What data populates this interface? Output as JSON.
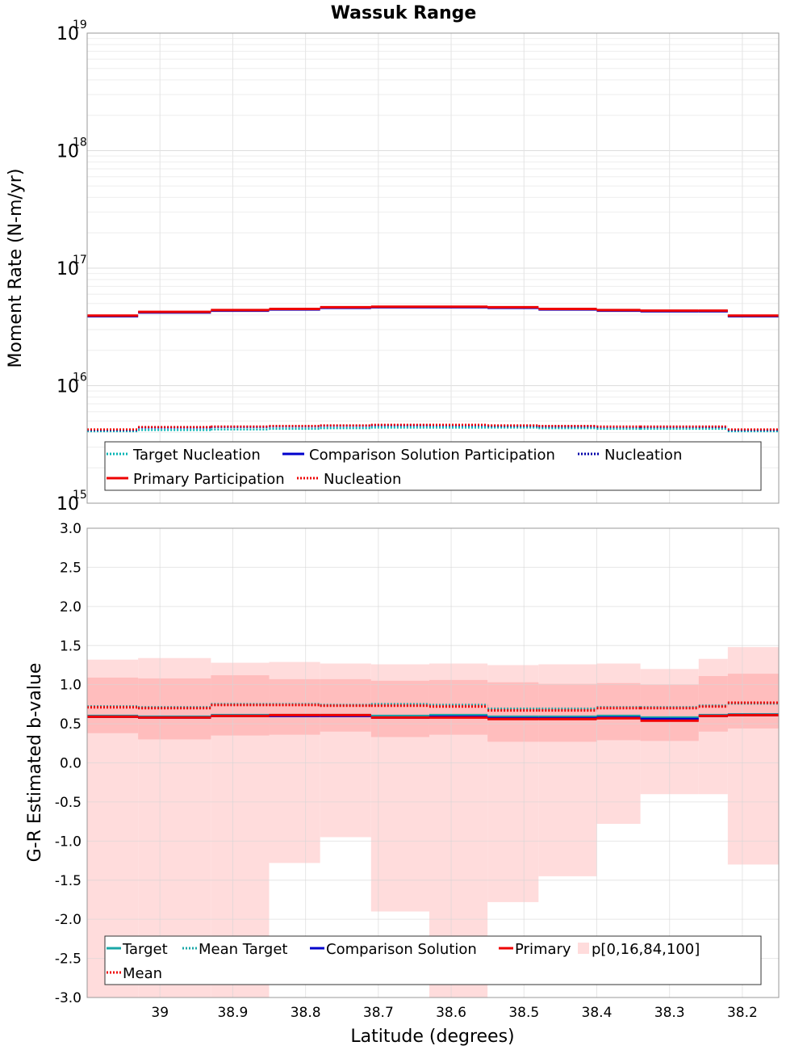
{
  "chart_data": [
    {
      "type": "line",
      "title": "Wassuk Range",
      "xlabel": "",
      "ylabel": "Moment Rate (N-m/yr)",
      "yscale": "log",
      "ylim": [
        1000000000000000.0,
        1e+19
      ],
      "yticks": [
        {
          "base": "10",
          "exp": "15",
          "value": 1000000000000000.0
        },
        {
          "base": "10",
          "exp": "16",
          "value": 1e+16
        },
        {
          "base": "10",
          "exp": "17",
          "value": 1e+17
        },
        {
          "base": "10",
          "exp": "18",
          "value": 1e+18
        },
        {
          "base": "10",
          "exp": "19",
          "value": 1e+19
        }
      ],
      "xlim": [
        39.1,
        38.15
      ],
      "grid": true,
      "legend_position": "bottom",
      "bins": [
        [
          39.1,
          39.03
        ],
        [
          39.03,
          38.93
        ],
        [
          38.93,
          38.85
        ],
        [
          38.85,
          38.78
        ],
        [
          38.78,
          38.71
        ],
        [
          38.71,
          38.63
        ],
        [
          38.63,
          38.55
        ],
        [
          38.55,
          38.48
        ],
        [
          38.48,
          38.4
        ],
        [
          38.4,
          38.34
        ],
        [
          38.34,
          38.26
        ],
        [
          38.26,
          38.22
        ],
        [
          38.22,
          38.15
        ]
      ],
      "series": [
        {
          "name": "Target Nucleation",
          "style": "dotted",
          "color": "#00b3b3",
          "values": [
            4100000000000000.0,
            4200000000000000.0,
            4250000000000000.0,
            4300000000000000.0,
            4350000000000000.0,
            4400000000000000.0,
            4400000000000000.0,
            4400000000000000.0,
            4350000000000000.0,
            4300000000000000.0,
            4300000000000000.0,
            4300000000000000.0,
            4100000000000000.0
          ]
        },
        {
          "name": "Comparison Solution Participation",
          "style": "solid",
          "color": "#0000cc",
          "values": [
            3.9e+16,
            4.2e+16,
            4.35e+16,
            4.45e+16,
            4.6e+16,
            4.65e+16,
            4.65e+16,
            4.6e+16,
            4.45e+16,
            4.35e+16,
            4.3e+16,
            4.3e+16,
            3.9e+16
          ]
        },
        {
          "name": "Nucleation",
          "style": "dotted",
          "color": "#0000aa",
          "values": [
            4200000000000000.0,
            4400000000000000.0,
            4450000000000000.0,
            4500000000000000.0,
            4550000000000000.0,
            4600000000000000.0,
            4600000000000000.0,
            4550000000000000.0,
            4500000000000000.0,
            4450000000000000.0,
            4450000000000000.0,
            4450000000000000.0,
            4200000000000000.0
          ]
        },
        {
          "name": "Primary Participation",
          "style": "solid",
          "color": "#ee0000",
          "values": [
            3.95e+16,
            4.25e+16,
            4.4e+16,
            4.5e+16,
            4.65e+16,
            4.7e+16,
            4.7e+16,
            4.65e+16,
            4.5e+16,
            4.4e+16,
            4.35e+16,
            4.35e+16,
            3.95e+16
          ]
        },
        {
          "name": "Nucleation",
          "style": "dotted",
          "color": "#ee0000",
          "values": [
            4250000000000000.0,
            4450000000000000.0,
            4500000000000000.0,
            4550000000000000.0,
            4600000000000000.0,
            4650000000000000.0,
            4650000000000000.0,
            4600000000000000.0,
            4550000000000000.0,
            4500000000000000.0,
            4500000000000000.0,
            4500000000000000.0,
            4250000000000000.0
          ]
        }
      ]
    },
    {
      "type": "area",
      "title": "",
      "xlabel": "Latitude (degrees)",
      "ylabel": "G-R Estimated b-value",
      "ylim": [
        -3.0,
        3.0
      ],
      "yticks": [
        "-3.0",
        "-2.5",
        "-2.0",
        "-1.5",
        "-1.0",
        "-0.5",
        "0.0",
        "0.5",
        "1.0",
        "1.5",
        "2.0",
        "2.5",
        "3.0"
      ],
      "xlim": [
        39.1,
        38.15
      ],
      "xticks": [
        "39",
        "38.9",
        "38.8",
        "38.7",
        "38.6",
        "38.5",
        "38.4",
        "38.3",
        "38.2"
      ],
      "grid": true,
      "legend_position": "bottom",
      "bins": [
        [
          39.1,
          39.03
        ],
        [
          39.03,
          38.93
        ],
        [
          38.93,
          38.85
        ],
        [
          38.85,
          38.78
        ],
        [
          38.78,
          38.71
        ],
        [
          38.71,
          38.63
        ],
        [
          38.63,
          38.55
        ],
        [
          38.55,
          38.48
        ],
        [
          38.48,
          38.4
        ],
        [
          38.4,
          38.34
        ],
        [
          38.34,
          38.26
        ],
        [
          38.26,
          38.22
        ],
        [
          38.22,
          38.15
        ]
      ],
      "band_outer": {
        "color": "#ffdcdc",
        "low": [
          -3.0,
          -3.0,
          -3.0,
          -1.28,
          -0.95,
          -1.9,
          -3.0,
          -1.78,
          -1.45,
          -0.78,
          -0.4,
          -0.4,
          -1.3
        ],
        "high": [
          1.32,
          1.34,
          1.28,
          1.29,
          1.27,
          1.26,
          1.27,
          1.25,
          1.26,
          1.27,
          1.2,
          1.33,
          1.48
        ]
      },
      "band_inner": {
        "color": "#ffbdbd",
        "low": [
          0.38,
          0.3,
          0.35,
          0.36,
          0.4,
          0.33,
          0.36,
          0.27,
          0.27,
          0.29,
          0.28,
          0.4,
          0.44
        ],
        "high": [
          1.09,
          1.08,
          1.12,
          1.07,
          1.07,
          1.05,
          1.06,
          1.03,
          1.01,
          1.02,
          1.0,
          1.11,
          1.14
        ]
      },
      "series": [
        {
          "name": "Target",
          "style": "solid",
          "color": "#1aa7a7",
          "values": [
            0.6,
            0.59,
            0.61,
            0.61,
            0.61,
            0.6,
            0.61,
            0.59,
            0.59,
            0.6,
            0.58,
            0.61,
            0.62
          ]
        },
        {
          "name": "Mean Target",
          "style": "dotted",
          "color": "#1aa7a7",
          "values": [
            0.72,
            0.71,
            0.75,
            0.75,
            0.74,
            0.75,
            0.74,
            0.69,
            0.69,
            0.71,
            0.71,
            0.73,
            0.76
          ]
        },
        {
          "name": "Comparison Solution",
          "style": "solid",
          "color": "#0000cc",
          "values": [
            0.59,
            0.58,
            0.6,
            0.6,
            0.6,
            0.58,
            0.59,
            0.57,
            0.57,
            0.58,
            0.56,
            0.6,
            0.61
          ]
        },
        {
          "name": "Primary",
          "style": "solid",
          "color": "#ee0000",
          "values": [
            0.59,
            0.58,
            0.6,
            0.61,
            0.61,
            0.58,
            0.58,
            0.56,
            0.56,
            0.57,
            0.54,
            0.6,
            0.61
          ]
        },
        {
          "name": "Mean",
          "style": "dotted",
          "color": "#ee0000",
          "values": [
            0.71,
            0.7,
            0.74,
            0.74,
            0.73,
            0.73,
            0.72,
            0.67,
            0.67,
            0.7,
            0.7,
            0.72,
            0.77
          ]
        }
      ],
      "percentile_legend": "p[0,16,84,100]"
    }
  ]
}
